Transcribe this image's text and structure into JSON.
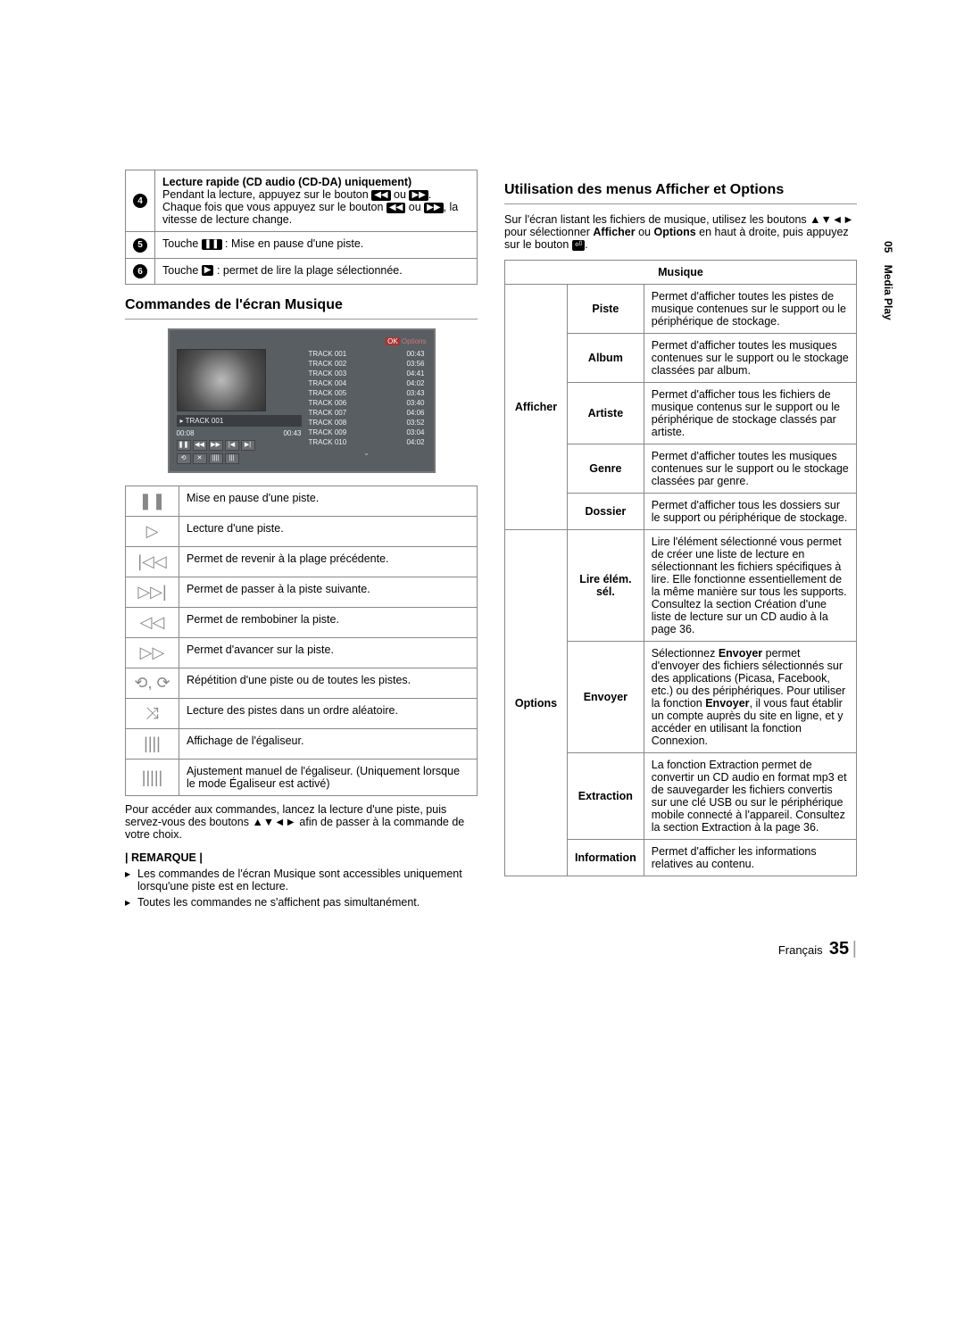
{
  "side": {
    "chapter": "05",
    "label": "Media Play"
  },
  "left": {
    "topTable": {
      "r4": {
        "num": "4",
        "title": "Lecture rapide (CD audio (CD-DA) uniquement)",
        "text1": "Pendant la lecture, appuyez sur le bouton ",
        "icon1": "◀◀",
        "text2": " ou ",
        "icon2": "▶▶",
        "text3": ". Chaque fois que vous appuyez sur le bouton ",
        "icon3": "◀◀",
        "text4": " ou ",
        "icon4": "▶▶",
        "text5": ", la vitesse de lecture change."
      },
      "r5": {
        "num": "5",
        "pre": "Touche ",
        "icon": "❚❚",
        "post": " : Mise en pause d'une piste."
      },
      "r6": {
        "num": "6",
        "pre": "Touche ",
        "icon": "▶",
        "post": " : permet de lire la plage sélectionnée."
      }
    },
    "sectionTitle": "Commandes de l'écran Musique",
    "mock": {
      "optionsLabel": "Options",
      "nowTrack": "TRACK 001",
      "timeStart": "00:08",
      "timeEnd": "00:43",
      "tracks": [
        {
          "n": "TRACK 001",
          "t": "00:43"
        },
        {
          "n": "TRACK 002",
          "t": "03:56"
        },
        {
          "n": "TRACK 003",
          "t": "04:41"
        },
        {
          "n": "TRACK 004",
          "t": "04:02"
        },
        {
          "n": "TRACK 005",
          "t": "03:43"
        },
        {
          "n": "TRACK 006",
          "t": "03:40"
        },
        {
          "n": "TRACK 007",
          "t": "04:06"
        },
        {
          "n": "TRACK 008",
          "t": "03:52"
        },
        {
          "n": "TRACK 009",
          "t": "03:04"
        },
        {
          "n": "TRACK 010",
          "t": "04:02"
        }
      ],
      "ctrlIcons": [
        "❚❚",
        "◀◀",
        "▶▶",
        "|◀",
        "▶|"
      ],
      "ctrlIcons2": [
        "⟲",
        "✕",
        "||||",
        "|||"
      ]
    },
    "iconTable": [
      {
        "icon": "❚❚",
        "text": "Mise en pause d'une piste."
      },
      {
        "icon": "▷",
        "text": "Lecture d'une piste."
      },
      {
        "icon": "|◁◁",
        "text": "Permet de revenir à la plage précédente."
      },
      {
        "icon": "▷▷|",
        "text": "Permet de passer à la piste suivante."
      },
      {
        "icon": "◁◁",
        "text": "Permet de rembobiner la piste."
      },
      {
        "icon": "▷▷",
        "text": "Permet d'avancer sur la piste."
      },
      {
        "icon": "⟲, ⟳",
        "text": "Répétition d'une piste ou de toutes les pistes."
      },
      {
        "icon": "⤨",
        "text": "Lecture des pistes dans un ordre aléatoire."
      },
      {
        "icon": "||||",
        "text": "Affichage de l'égaliseur."
      },
      {
        "icon": "|||||",
        "text": "Ajustement manuel de l'égaliseur. (Uniquement lorsque le mode Égaliseur est activé)"
      }
    ],
    "afterTable": "Pour accéder aux commandes, lancez la lecture d'une piste, puis servez-vous des boutons ▲▼◄► afin de passer à la commande de votre choix.",
    "remarqueLabel": "| REMARQUE |",
    "notes": [
      "Les commandes de l'écran Musique sont accessibles uniquement lorsqu'une piste est en lecture.",
      "Toutes les commandes ne s'affichent pas simultanément."
    ]
  },
  "right": {
    "sectionTitle": "Utilisation des menus Afficher et Options",
    "introPart1": "Sur l'écran listant les fichiers de musique, utilisez les boutons ▲▼◄► pour sélectionner ",
    "introBold1": "Afficher",
    "introMid": " ou ",
    "introBold2": "Options",
    "introPart2": " en haut à droite, puis appuyez sur le bouton ",
    "introIcon": "⏎",
    "introEnd": ".",
    "tableHeader": "Musique",
    "afficherLabel": "Afficher",
    "optionsLabel": "Options",
    "afficher": [
      {
        "k": "Piste",
        "v": "Permet d'afficher toutes les pistes de musique contenues sur le support ou le périphérique de stockage."
      },
      {
        "k": "Album",
        "v": "Permet d'afficher toutes les musiques contenues sur le support ou le stockage classées par album."
      },
      {
        "k": "Artiste",
        "v": "Permet d'afficher tous les fichiers de musique contenus sur le support ou le périphérique de stockage classés par artiste."
      },
      {
        "k": "Genre",
        "v": "Permet d'afficher toutes les musiques contenues sur le support ou le stockage classées par genre."
      },
      {
        "k": "Dossier",
        "v": "Permet d'afficher tous les dossiers sur le support ou périphérique de stockage."
      }
    ],
    "options": [
      {
        "k": "Lire élém. sél.",
        "v": "Lire l'élément sélectionné vous permet de créer une liste de lecture en sélectionnant les fichiers spécifiques à lire. Elle fonctionne essentiellement de la même manière sur tous les supports. Consultez la section Création d'une liste de lecture sur un CD audio à la page 36."
      },
      {
        "k": "Envoyer",
        "v": "Sélectionnez <b>Envoyer</b> permet d'envoyer des fichiers sélectionnés sur des applications (Picasa, Facebook, etc.) ou des périphériques. Pour utiliser la fonction <b>Envoyer</b>, il vous faut établir un compte auprès du site en ligne, et y accéder en utilisant la fonction Connexion."
      },
      {
        "k": "Extraction",
        "v": "La fonction Extraction permet de convertir un CD audio en format mp3 et de sauvegarder les fichiers convertis sur une clé USB ou sur le périphérique mobile connecté à l'appareil. Consultez la section Extraction à la page 36."
      },
      {
        "k": "Information",
        "v": "Permet d'afficher les informations relatives au contenu."
      }
    ]
  },
  "footer": {
    "lang": "Français",
    "page": "35"
  }
}
